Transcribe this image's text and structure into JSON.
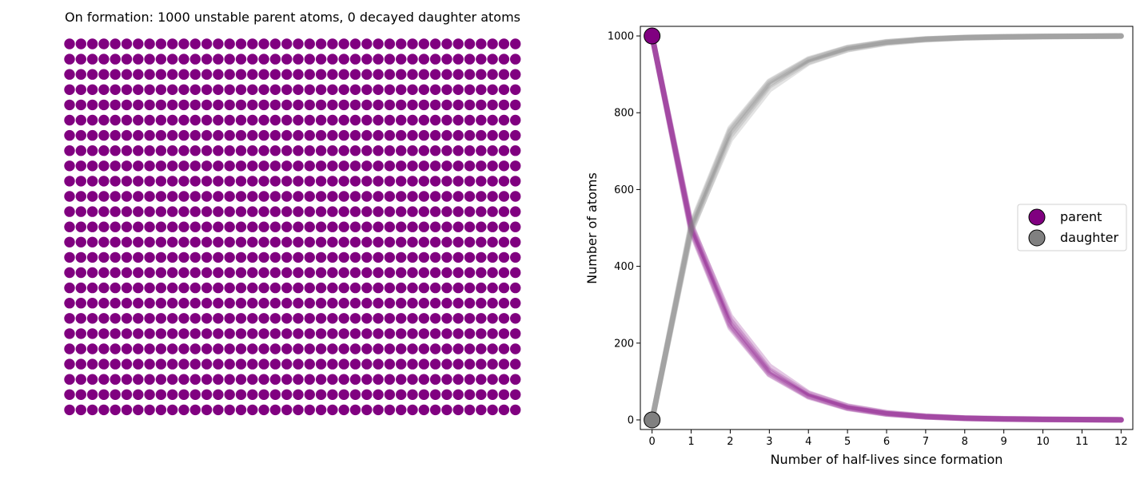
{
  "left_panel": {
    "title": "On formation: 1000 unstable parent atoms, 0 decayed daughter atoms",
    "grid": {
      "rows": 25,
      "cols": 40
    },
    "parent_count": 1000,
    "daughter_count": 0
  },
  "colors": {
    "parent": "#800080",
    "daughter": "#808080"
  },
  "chart_data": {
    "type": "line",
    "xlabel": "Number of half-lives since formation",
    "ylabel": "Number of atoms",
    "xlim": [
      -0.3,
      12.3
    ],
    "ylim": [
      -25,
      1025
    ],
    "xticks": [
      0,
      1,
      2,
      3,
      4,
      5,
      6,
      7,
      8,
      9,
      10,
      11,
      12
    ],
    "yticks": [
      0,
      200,
      400,
      600,
      800,
      1000
    ],
    "legend_position": "center-right",
    "legend": [
      "parent",
      "daughter"
    ],
    "x": [
      0,
      1,
      2,
      3,
      4,
      5,
      6,
      7,
      8,
      9,
      10,
      11,
      12
    ],
    "series": [
      {
        "name": "parent",
        "color": "#800080",
        "runs": [
          [
            1000,
            500,
            250,
            125,
            63,
            32,
            16,
            8,
            4,
            2,
            1,
            1,
            0
          ],
          [
            1000,
            510,
            260,
            130,
            68,
            35,
            18,
            9,
            5,
            3,
            2,
            1,
            0
          ],
          [
            1000,
            490,
            240,
            118,
            60,
            30,
            15,
            8,
            4,
            2,
            1,
            0,
            0
          ],
          [
            1000,
            505,
            270,
            140,
            70,
            36,
            19,
            10,
            5,
            3,
            2,
            1,
            1
          ],
          [
            1000,
            495,
            245,
            120,
            62,
            31,
            16,
            8,
            4,
            2,
            1,
            1,
            0
          ]
        ]
      },
      {
        "name": "daughter",
        "color": "#808080",
        "runs": [
          [
            0,
            500,
            750,
            875,
            937,
            968,
            984,
            992,
            996,
            998,
            999,
            999,
            1000
          ],
          [
            0,
            490,
            740,
            870,
            932,
            965,
            982,
            991,
            995,
            997,
            998,
            999,
            1000
          ],
          [
            0,
            510,
            760,
            882,
            940,
            970,
            985,
            992,
            996,
            998,
            999,
            1000,
            1000
          ],
          [
            0,
            495,
            730,
            860,
            930,
            964,
            981,
            990,
            995,
            997,
            998,
            999,
            999
          ],
          [
            0,
            505,
            755,
            880,
            938,
            969,
            984,
            992,
            996,
            998,
            999,
            999,
            1000
          ]
        ]
      }
    ],
    "initial_markers": [
      {
        "name": "parent",
        "x": 0,
        "y": 1000
      },
      {
        "name": "daughter",
        "x": 0,
        "y": 0
      }
    ]
  }
}
